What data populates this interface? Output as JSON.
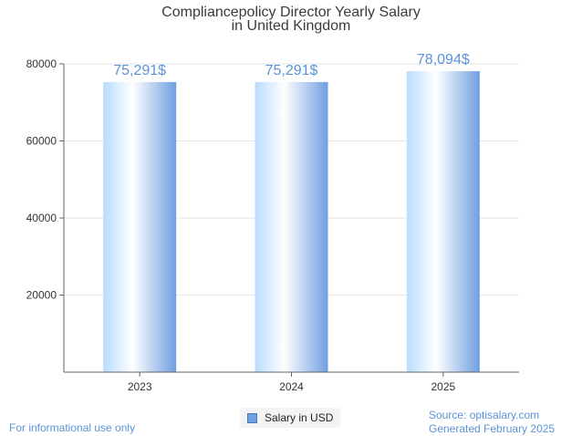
{
  "chart_data": {
    "type": "bar",
    "title_lines": [
      "Compliancepolicy Director Yearly Salary",
      "in United Kingdom"
    ],
    "categories": [
      "2023",
      "2024",
      "2025"
    ],
    "series": [
      {
        "name": "Salary in USD",
        "values": [
          75291,
          75291,
          78094
        ]
      }
    ],
    "value_labels": [
      "75,291$",
      "75,291$",
      "78,094$"
    ],
    "yticks": [
      20000,
      40000,
      60000,
      80000
    ],
    "ylim": [
      0,
      80000
    ],
    "grid": true,
    "legend_position": "bottom-center"
  },
  "footer": {
    "disclaimer": "For informational use only",
    "source": "Source: optisalary.com",
    "generated": "Generated February 2025"
  },
  "colors": {
    "bar_light": "#dff0ff",
    "bar_mid": "#ffffff",
    "bar_dark": "#6f9fe0",
    "label": "#5b93d8"
  }
}
